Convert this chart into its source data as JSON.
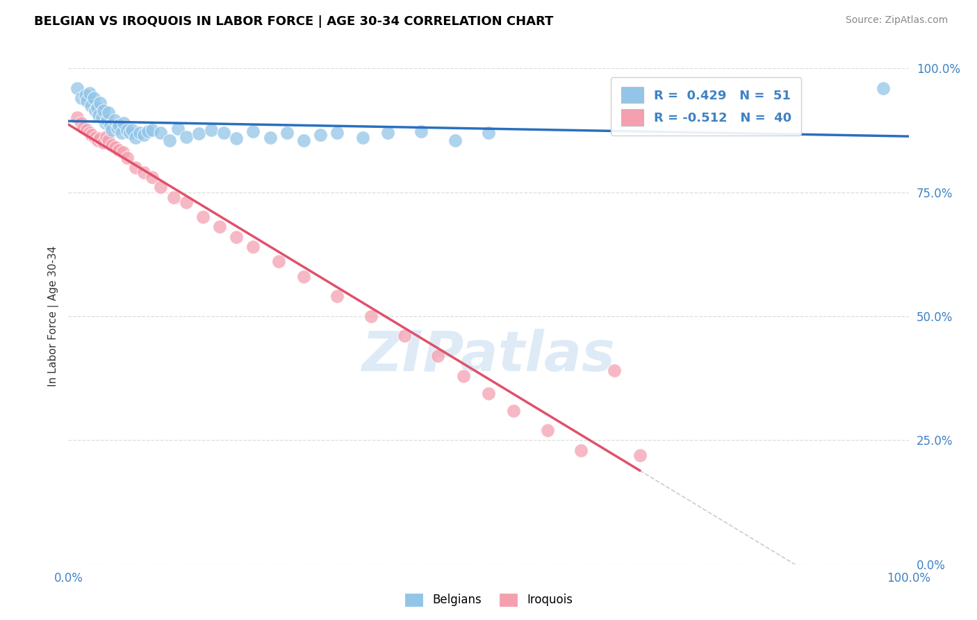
{
  "title": "BELGIAN VS IROQUOIS IN LABOR FORCE | AGE 30-34 CORRELATION CHART",
  "source": "Source: ZipAtlas.com",
  "ylabel": "In Labor Force | Age 30-34",
  "xlim": [
    0.0,
    1.0
  ],
  "ylim": [
    0.0,
    1.0
  ],
  "ytick_positions": [
    0.0,
    0.25,
    0.5,
    0.75,
    1.0
  ],
  "ytick_labels": [
    "0.0%",
    "25.0%",
    "50.0%",
    "75.0%",
    "100.0%"
  ],
  "xtick_labels": [
    "0.0%",
    "100.0%"
  ],
  "belgian_color": "#92C5E8",
  "iroquois_color": "#F4A0B0",
  "belgian_line_color": "#2A6FBF",
  "iroquois_line_color": "#E0506A",
  "watermark": "ZIPatlas",
  "watermark_color": "#C8DFF0",
  "background": "#FFFFFF",
  "title_color": "#000000",
  "axis_label_color": "#333333",
  "tick_color": "#3E82C4",
  "grid_color": "#DDDDDD",
  "ref_line_color": "#CCCCCC",
  "legend_r_belgian": "0.429",
  "legend_n_belgian": "51",
  "legend_r_iroquois": "-0.512",
  "legend_n_iroquois": "40",
  "belgian_x": [
    0.01,
    0.015,
    0.02,
    0.022,
    0.025,
    0.027,
    0.03,
    0.032,
    0.034,
    0.036,
    0.038,
    0.04,
    0.042,
    0.044,
    0.046,
    0.048,
    0.05,
    0.052,
    0.055,
    0.058,
    0.06,
    0.063,
    0.066,
    0.07,
    0.073,
    0.076,
    0.08,
    0.085,
    0.09,
    0.095,
    0.1,
    0.11,
    0.12,
    0.13,
    0.14,
    0.155,
    0.17,
    0.185,
    0.2,
    0.22,
    0.24,
    0.26,
    0.28,
    0.3,
    0.32,
    0.35,
    0.38,
    0.42,
    0.46,
    0.5,
    0.97
  ],
  "belgian_y": [
    0.96,
    0.94,
    0.945,
    0.935,
    0.95,
    0.925,
    0.94,
    0.915,
    0.92,
    0.905,
    0.93,
    0.9,
    0.915,
    0.89,
    0.895,
    0.91,
    0.885,
    0.875,
    0.895,
    0.88,
    0.885,
    0.87,
    0.89,
    0.875,
    0.87,
    0.875,
    0.86,
    0.87,
    0.865,
    0.872,
    0.875,
    0.87,
    0.855,
    0.878,
    0.862,
    0.868,
    0.875,
    0.87,
    0.858,
    0.872,
    0.86,
    0.87,
    0.855,
    0.865,
    0.87,
    0.86,
    0.87,
    0.872,
    0.855,
    0.87,
    0.96
  ],
  "iroquois_x": [
    0.01,
    0.015,
    0.018,
    0.022,
    0.025,
    0.028,
    0.032,
    0.035,
    0.038,
    0.042,
    0.045,
    0.048,
    0.052,
    0.056,
    0.06,
    0.065,
    0.07,
    0.08,
    0.09,
    0.1,
    0.11,
    0.125,
    0.14,
    0.16,
    0.18,
    0.2,
    0.22,
    0.25,
    0.28,
    0.32,
    0.36,
    0.4,
    0.44,
    0.47,
    0.5,
    0.53,
    0.57,
    0.61,
    0.65,
    0.68
  ],
  "iroquois_y": [
    0.9,
    0.89,
    0.88,
    0.875,
    0.87,
    0.865,
    0.86,
    0.855,
    0.858,
    0.85,
    0.862,
    0.855,
    0.845,
    0.84,
    0.835,
    0.83,
    0.82,
    0.8,
    0.79,
    0.78,
    0.76,
    0.74,
    0.73,
    0.7,
    0.68,
    0.66,
    0.64,
    0.61,
    0.58,
    0.54,
    0.5,
    0.46,
    0.42,
    0.38,
    0.345,
    0.31,
    0.27,
    0.23,
    0.39,
    0.22
  ]
}
